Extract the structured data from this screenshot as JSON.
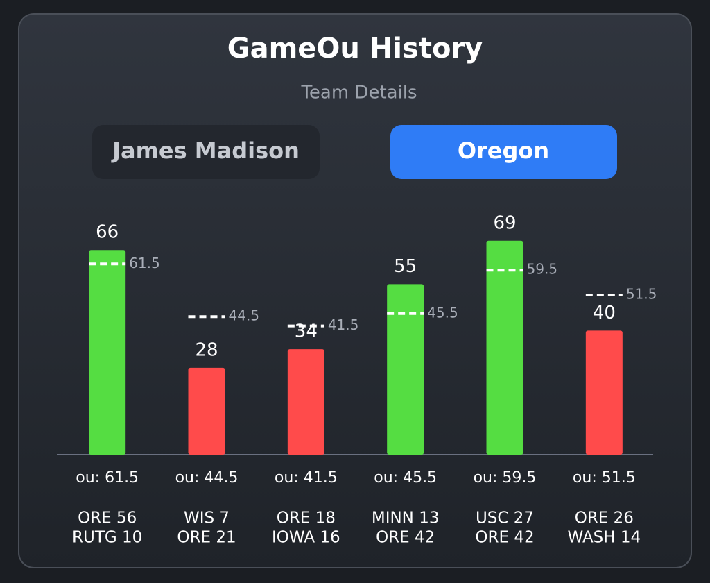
{
  "header": {
    "title": "GameOu History",
    "subtitle": "Team Details"
  },
  "tabs": [
    {
      "label": "James Madison"
    },
    {
      "label": "Oregon",
      "active": true
    }
  ],
  "chart_data": {
    "type": "bar",
    "categories": [
      [
        "ORE 56",
        "RUTG 10"
      ],
      [
        "WIS 7",
        "ORE 21"
      ],
      [
        "ORE 18",
        "IOWA 16"
      ],
      [
        "MINN 13",
        "ORE 42"
      ],
      [
        "USC 27",
        "ORE 42"
      ],
      [
        "ORE 26",
        "WASH 14"
      ]
    ],
    "values": [
      66,
      28,
      34,
      55,
      69,
      40
    ],
    "ou": [
      61.5,
      44.5,
      41.5,
      45.5,
      59.5,
      51.5
    ],
    "ou_labels": [
      "ou: 61.5",
      "ou: 44.5",
      "ou: 41.5",
      "ou: 45.5",
      "ou: 59.5",
      "ou: 51.5"
    ],
    "over_color": "#55dd42",
    "under_color": "#ff4b4b",
    "ylim": [
      0,
      75
    ]
  }
}
